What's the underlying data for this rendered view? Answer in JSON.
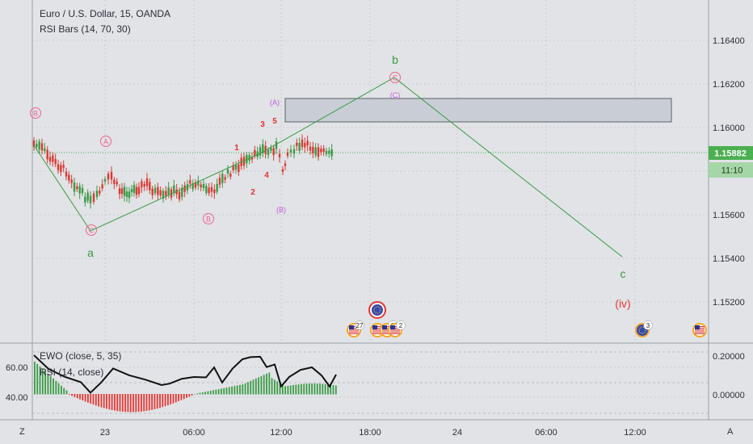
{
  "header": {
    "symbol_line": "Euro / U.S. Dollar, 15, OANDA",
    "indicator_line": "RSI Bars (14, 70, 30)"
  },
  "price_axis": {
    "ticks": [
      "1.16400",
      "1.16200",
      "1.16000",
      "1.15800",
      "1.15600",
      "1.15400",
      "1.15200"
    ],
    "current_price": "1.15882",
    "countdown": "11:10"
  },
  "time_axis": {
    "ticks": [
      "23",
      "06:00",
      "12:00",
      "18:00",
      "24",
      "06:00",
      "12:00"
    ],
    "left_button": "Z",
    "right_button": "A"
  },
  "wave_labels": {
    "minor": [
      "1",
      "2",
      "3",
      "4",
      "5"
    ],
    "abc_circled": [
      "A",
      "B",
      "C"
    ],
    "abc_paren": [
      "(A)",
      "(B)",
      "(C)"
    ],
    "edge_b": "B",
    "primary": [
      "a",
      "b",
      "c"
    ],
    "iv": "(iv)"
  },
  "events": {
    "counts": [
      "27",
      "2",
      "2",
      "3"
    ]
  },
  "lower_pane": {
    "legend_ewo": "EWO (close, 5, 35)",
    "legend_rsi": "RSI (14, close)",
    "left_ticks": [
      "60.00",
      "40.00"
    ],
    "right_ticks": [
      "0.20000",
      "0.00000"
    ]
  },
  "colors": {
    "bull": "#26a69a",
    "bear": "#ef5350",
    "candle_up": "#3a9a45",
    "candle_down": "#d93a32",
    "wave_line": "#3c9a43",
    "wave_label_green": "#3c9a43",
    "minor_label": "#e5312f",
    "circle_label": "#f06292",
    "paren_label": "#c05cd8",
    "price_tag": "#4caf50",
    "rsi_line": "#111111",
    "ewo_up": "#3d9b46",
    "ewo_down": "#e53935"
  }
}
